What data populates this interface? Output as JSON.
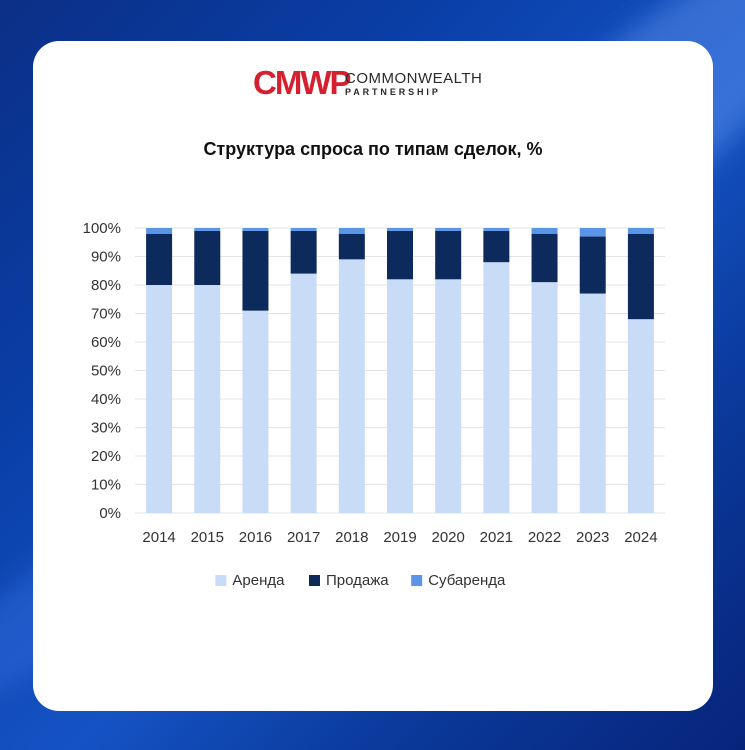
{
  "brand": {
    "mark": "CMWP",
    "line1": "COMMONWEALTH",
    "line2": "PARTNERSHIP",
    "color": "#d7202f"
  },
  "chart_data": {
    "type": "bar",
    "stacked": true,
    "title": "Структура спроса по типам сделок, %",
    "categories": [
      "2014",
      "2015",
      "2016",
      "2017",
      "2018",
      "2019",
      "2020",
      "2021",
      "2022",
      "2023",
      "2024"
    ],
    "series": [
      {
        "name": "Аренда",
        "color": "#c9dcf7",
        "values": [
          80,
          80,
          71,
          84,
          89,
          82,
          82,
          88,
          81,
          77,
          68
        ]
      },
      {
        "name": "Продажа",
        "color": "#0d2a5c",
        "values": [
          18,
          19,
          28,
          15,
          9,
          17,
          17,
          11,
          17,
          20,
          30
        ]
      },
      {
        "name": "Субаренда",
        "color": "#5b95e8",
        "values": [
          2,
          1,
          1,
          1,
          2,
          1,
          1,
          1,
          2,
          3,
          2
        ]
      }
    ],
    "yticks": [
      "0%",
      "10%",
      "20%",
      "30%",
      "40%",
      "50%",
      "60%",
      "70%",
      "80%",
      "90%",
      "100%"
    ],
    "ylim": [
      0,
      100
    ],
    "grid": true,
    "legend_position": "bottom"
  }
}
